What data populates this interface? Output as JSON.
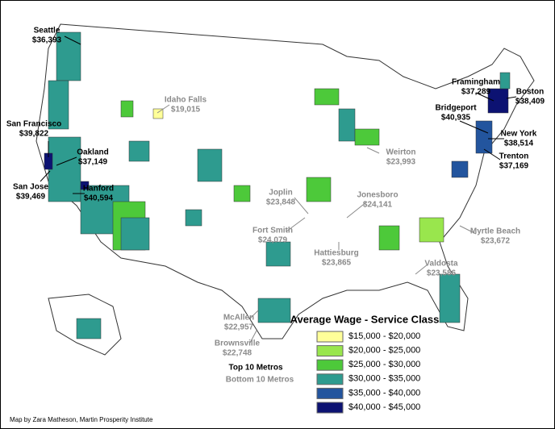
{
  "title": "Average Wage - Service Class",
  "legend": [
    {
      "label": "$15,000 - $20,000",
      "color": "#ffff99"
    },
    {
      "label": "$20,000 - $25,000",
      "color": "#99e64d"
    },
    {
      "label": "$25,000 - $30,000",
      "color": "#4dc93a"
    },
    {
      "label": "$30,000 - $35,000",
      "color": "#2e9b8f"
    },
    {
      "label": "$35,000 - $40,000",
      "color": "#23559e"
    },
    {
      "label": "$40,000 - $45,000",
      "color": "#0c1272"
    }
  ],
  "key": {
    "top": "Top 10 Metros",
    "bottom": "Bottom 10 Metros"
  },
  "top_metros": [
    {
      "name": "Seattle",
      "wage": "$36,393"
    },
    {
      "name": "San Francisco",
      "wage": "$39,822"
    },
    {
      "name": "Oakland",
      "wage": "$37,149"
    },
    {
      "name": "San Jose",
      "wage": "$39,469"
    },
    {
      "name": "Hanford",
      "wage": "$40,594"
    },
    {
      "name": "Framingham",
      "wage": "$37,289"
    },
    {
      "name": "Boston",
      "wage": "$38,409"
    },
    {
      "name": "Bridgeport",
      "wage": "$40,935"
    },
    {
      "name": "New York",
      "wage": "$38,514"
    },
    {
      "name": "Trenton",
      "wage": "$37,169"
    }
  ],
  "bottom_metros": [
    {
      "name": "Idaho Falls",
      "wage": "$19,015"
    },
    {
      "name": "Weirton",
      "wage": "$23,993"
    },
    {
      "name": "Joplin",
      "wage": "$23,848"
    },
    {
      "name": "Jonesboro",
      "wage": "$24,141"
    },
    {
      "name": "Fort Smith",
      "wage": "$24,079"
    },
    {
      "name": "Hattiesburg",
      "wage": "$23,865"
    },
    {
      "name": "Myrtle Beach",
      "wage": "$23,672"
    },
    {
      "name": "Valdosta",
      "wage": "$23,586"
    },
    {
      "name": "McAllen",
      "wage": "$22,957"
    },
    {
      "name": "Brownsville",
      "wage": "$22,748"
    }
  ],
  "credit": "Map by Zara Matheson, Martin Prosperity Institute"
}
